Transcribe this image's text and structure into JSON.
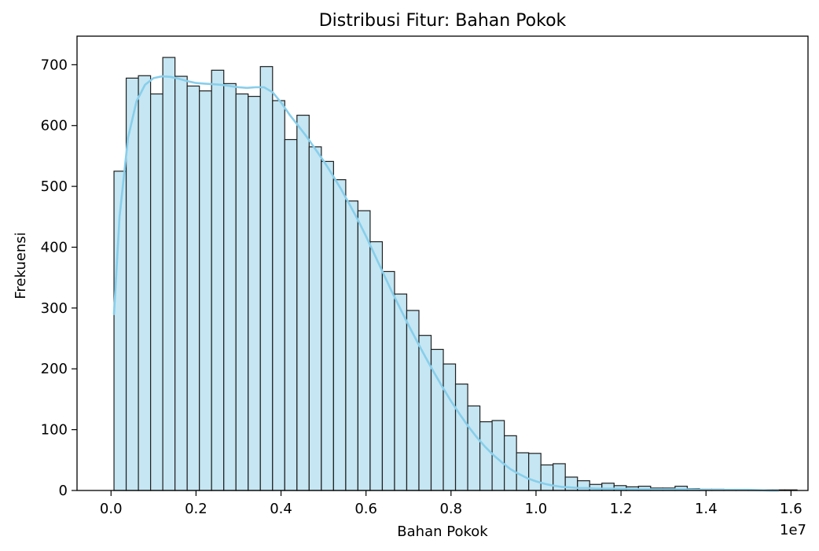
{
  "chart_data": {
    "type": "bar",
    "title": "Distribusi Fitur: Bahan Pokok",
    "xlabel": "Bahan Pokok",
    "ylabel": "Frekuensi",
    "x_offset_label": "1e7",
    "xlim": [
      -0.08,
      1.64
    ],
    "ylim": [
      0,
      747
    ],
    "x_ticks": [
      0.0,
      0.2,
      0.4,
      0.6,
      0.8,
      1.0,
      1.2,
      1.4,
      1.6
    ],
    "x_tick_labels": [
      "0.0",
      "0.2",
      "0.4",
      "0.6",
      "0.8",
      "1.0",
      "1.2",
      "1.4",
      "1.6"
    ],
    "y_ticks": [
      0,
      100,
      200,
      300,
      400,
      500,
      600,
      700
    ],
    "y_tick_labels": [
      "0",
      "100",
      "200",
      "300",
      "400",
      "500",
      "600",
      "700"
    ],
    "bin_start": 0.007,
    "bin_width": 0.0287,
    "values": [
      525,
      678,
      682,
      652,
      712,
      681,
      665,
      657,
      691,
      669,
      652,
      648,
      697,
      641,
      577,
      617,
      565,
      541,
      511,
      476,
      460,
      409,
      360,
      323,
      296,
      255,
      232,
      208,
      175,
      139,
      113,
      115,
      90,
      62,
      61,
      42,
      44,
      22,
      16,
      10,
      12,
      8,
      6,
      7,
      4,
      4,
      7,
      3,
      2,
      2,
      1,
      1,
      1,
      1,
      1,
      1
    ],
    "kde": {
      "x": [
        0.007,
        0.02,
        0.04,
        0.06,
        0.08,
        0.1,
        0.12,
        0.14,
        0.16,
        0.18,
        0.2,
        0.22,
        0.24,
        0.26,
        0.28,
        0.3,
        0.32,
        0.34,
        0.36,
        0.38,
        0.4,
        0.42,
        0.44,
        0.46,
        0.48,
        0.5,
        0.52,
        0.54,
        0.56,
        0.58,
        0.6,
        0.62,
        0.64,
        0.66,
        0.68,
        0.7,
        0.72,
        0.74,
        0.76,
        0.78,
        0.8,
        0.82,
        0.84,
        0.86,
        0.88,
        0.9,
        0.92,
        0.94,
        0.96,
        0.98,
        1.0,
        1.02,
        1.04,
        1.06,
        1.08,
        1.1,
        1.12,
        1.14,
        1.16,
        1.18,
        1.2,
        1.25,
        1.3,
        1.35,
        1.4,
        1.45,
        1.5,
        1.55,
        1.57
      ],
      "y": [
        290,
        450,
        580,
        640,
        667,
        678,
        681,
        680,
        677,
        673,
        670,
        669,
        668,
        667,
        665,
        663,
        662,
        663,
        663,
        655,
        638,
        618,
        600,
        582,
        562,
        542,
        520,
        497,
        472,
        446,
        418,
        388,
        358,
        328,
        300,
        272,
        245,
        219,
        194,
        170,
        147,
        126,
        106,
        88,
        72,
        58,
        46,
        35,
        27,
        20,
        15,
        11,
        8,
        6,
        5,
        4,
        4,
        3,
        3,
        3,
        3,
        2,
        2,
        2,
        1,
        1,
        1,
        0,
        0
      ]
    },
    "colors": {
      "bar_fill": "#c5e6f2",
      "bar_edge": "#1f1f1f",
      "kde_line": "#87ceeb"
    },
    "grid": false,
    "legend": "none"
  }
}
